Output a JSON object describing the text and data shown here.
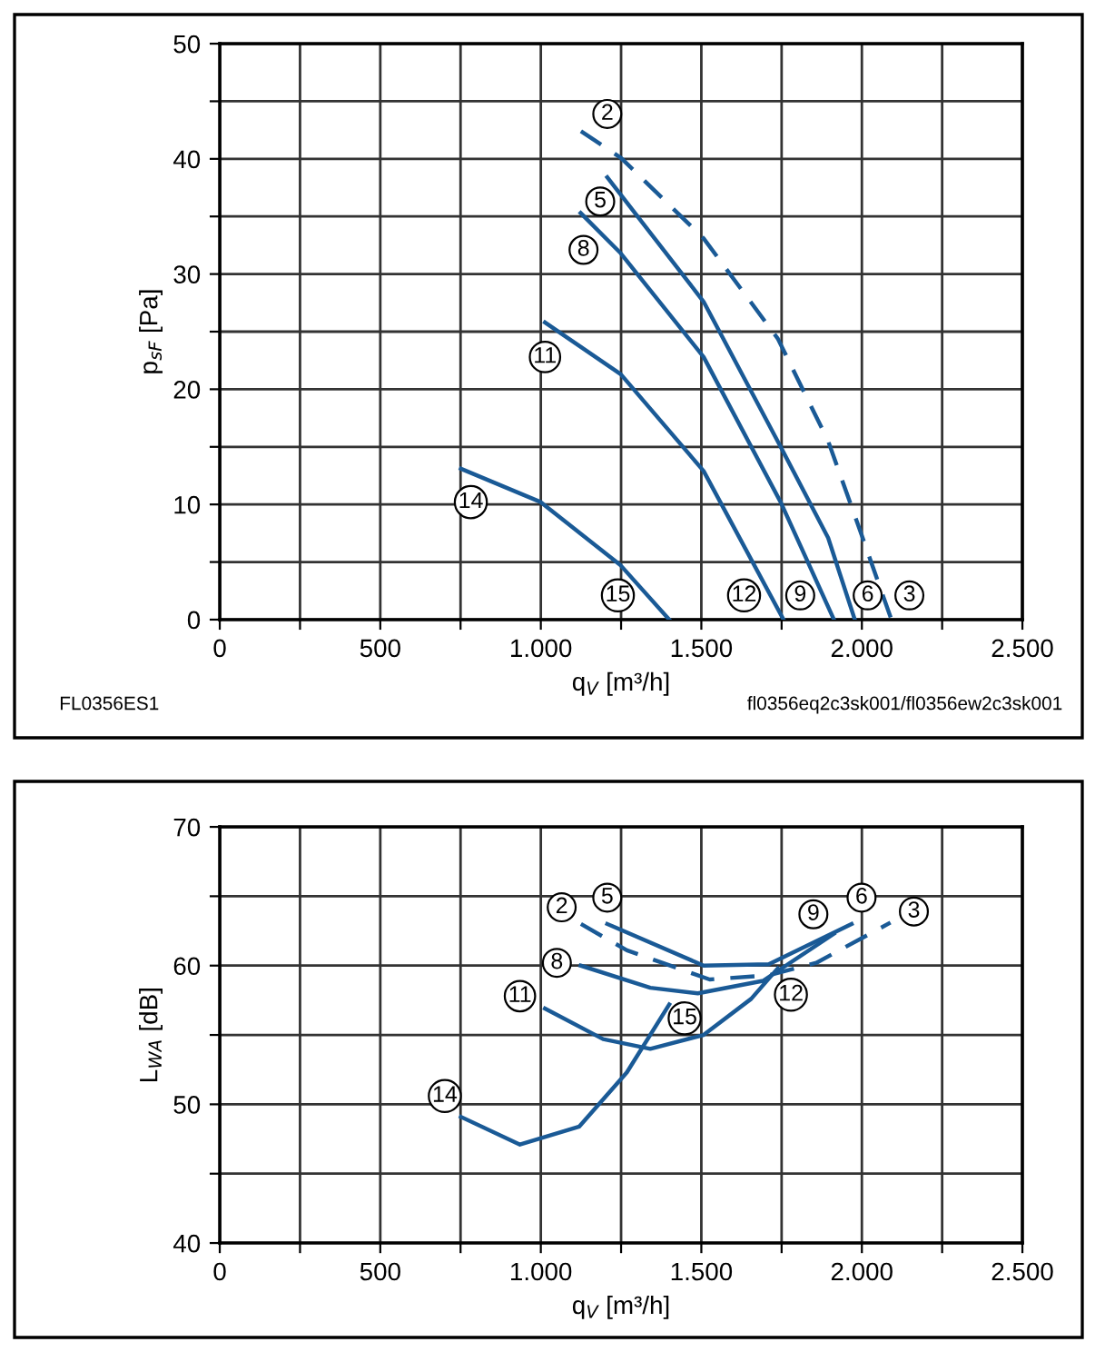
{
  "chart_data": [
    {
      "type": "line",
      "xlabel": "q$_{V}$ [m³/h]",
      "ylabel": "p$_{sF}$ [Pa]",
      "xlim": [
        0,
        2500
      ],
      "xticks": [
        0,
        {
          "value": 250,
          "label": null
        },
        500,
        {
          "value": 750,
          "label": null
        },
        {
          "value": 1000,
          "label": "1.000"
        },
        {
          "value": 1250,
          "label": null
        },
        {
          "value": 1500,
          "label": "1.500"
        },
        {
          "value": 1750,
          "label": null
        },
        {
          "value": 2000,
          "label": "2.000"
        },
        {
          "value": 2250,
          "label": null
        },
        {
          "value": 2500,
          "label": "2.500"
        }
      ],
      "ylim": [
        0,
        50
      ],
      "yticks": [
        0,
        {
          "value": 5,
          "label": null
        },
        10,
        {
          "value": 15,
          "label": null
        },
        20,
        {
          "value": 25,
          "label": null
        },
        30,
        {
          "value": 35,
          "label": null
        },
        40,
        {
          "value": 45,
          "label": null
        },
        50
      ],
      "grid": true,
      "marker": "none",
      "series": [
        {
          "color": "#1a5a96",
          "line_style": "dashed",
          "x": [
            1125,
            1249,
            1507,
            1738,
            1895,
            1996,
            2092
          ],
          "values": [
            42.4,
            40.1,
            33.1,
            24.4,
            15.5,
            7.6,
            0
          ]
        },
        {
          "color": "#1a5a96",
          "line_style": "solid",
          "x": [
            1207,
            1507,
            1747,
            1895,
            1978
          ],
          "values": [
            38.4,
            27.6,
            15.0,
            7.1,
            0
          ]
        },
        {
          "color": "#1a5a96",
          "line_style": "solid",
          "x": [
            1124,
            1249,
            1507,
            1747,
            1913
          ],
          "values": [
            35.3,
            31.8,
            22.8,
            10.2,
            0
          ]
        },
        {
          "color": "#1a5a96",
          "line_style": "solid",
          "x": [
            1013,
            1249,
            1507,
            1756
          ],
          "values": [
            25.8,
            21.3,
            12.9,
            0
          ]
        },
        {
          "color": "#1a5a96",
          "line_style": "solid",
          "x": [
            751,
            1000,
            1249,
            1400
          ],
          "values": [
            13.1,
            10.2,
            4.7,
            0
          ]
        }
      ],
      "annotations": [
        {
          "text": "2",
          "x": 1207,
          "y": 43.9
        },
        {
          "text": "5",
          "x": 1185,
          "y": 36.3
        },
        {
          "text": "8",
          "x": 1133,
          "y": 32.1
        },
        {
          "text": "11",
          "x": 1013,
          "y": 22.8
        },
        {
          "text": "14",
          "x": 782,
          "y": 10.2
        },
        {
          "text": "15",
          "x": 1240,
          "y": 2.1
        },
        {
          "text": "12",
          "x": 1633,
          "y": 2.1
        },
        {
          "text": "9",
          "x": 1808,
          "y": 2.1
        },
        {
          "text": "6",
          "x": 2018,
          "y": 2.1
        },
        {
          "text": "3",
          "x": 2148,
          "y": 2.1
        },
        "FL0356ES1",
        "fl0356eq2c3sk001/fl0356ew2c3sk001"
      ]
    },
    {
      "type": "line",
      "xlabel": "q$_{V}$ [m³/h]",
      "ylabel": "L$_{WA}$ [dB]",
      "xlim": [
        0,
        2500
      ],
      "xticks": [
        0,
        {
          "value": 250,
          "label": null
        },
        500,
        {
          "value": 750,
          "label": null
        },
        {
          "value": 1000,
          "label": "1.000"
        },
        {
          "value": 1250,
          "label": null
        },
        {
          "value": 1500,
          "label": "1.500"
        },
        {
          "value": 1750,
          "label": null
        },
        {
          "value": 2000,
          "label": "2.000"
        },
        {
          "value": 2250,
          "label": null
        },
        {
          "value": 2500,
          "label": "2.500"
        }
      ],
      "ylim": [
        40,
        70
      ],
      "yticks": [
        40,
        {
          "value": 45,
          "label": null
        },
        50,
        {
          "value": 55,
          "label": null
        },
        60,
        {
          "value": 65,
          "label": null
        },
        70
      ],
      "grid": true,
      "marker": "none",
      "series": [
        {
          "color": "#1a5a96",
          "line_style": "dashed",
          "x": [
            1125,
            1268,
            1526,
            1710,
            1858,
            2089
          ],
          "values": [
            63.0,
            61.1,
            59.0,
            59.3,
            60.2,
            63.1
          ]
        },
        {
          "color": "#1a5a96",
          "line_style": "solid",
          "x": [
            1207,
            1507,
            1710,
            1968
          ],
          "values": [
            63.0,
            60.0,
            60.1,
            63.0
          ]
        },
        {
          "color": "#1a5a96",
          "line_style": "solid",
          "x": [
            1124,
            1341,
            1489,
            1692,
            1913
          ],
          "values": [
            60.0,
            58.4,
            58.0,
            58.9,
            62.3
          ]
        },
        {
          "color": "#1a5a96",
          "line_style": "solid",
          "x": [
            1013,
            1194,
            1341,
            1507,
            1655,
            1738
          ],
          "values": [
            56.9,
            54.7,
            54.0,
            55.0,
            57.6,
            59.8
          ]
        },
        {
          "color": "#1a5a96",
          "line_style": "solid",
          "x": [
            751,
            935,
            1120,
            1268,
            1400
          ],
          "values": [
            49.1,
            47.1,
            48.4,
            52.3,
            57.2
          ]
        }
      ],
      "annotations": [
        {
          "text": "2",
          "x": 1065,
          "y": 64.2
        },
        {
          "text": "5",
          "x": 1207,
          "y": 64.9
        },
        {
          "text": "8",
          "x": 1050,
          "y": 60.2
        },
        {
          "text": "11",
          "x": 935,
          "y": 57.8
        },
        {
          "text": "14",
          "x": 701,
          "y": 50.6
        },
        {
          "text": "15",
          "x": 1448,
          "y": 56.2
        },
        {
          "text": "12",
          "x": 1779,
          "y": 57.9
        },
        {
          "text": "9",
          "x": 1849,
          "y": 63.7
        },
        {
          "text": "6",
          "x": 1999,
          "y": 64.9
        },
        {
          "text": "3",
          "x": 2162,
          "y": 63.9
        }
      ]
    }
  ]
}
